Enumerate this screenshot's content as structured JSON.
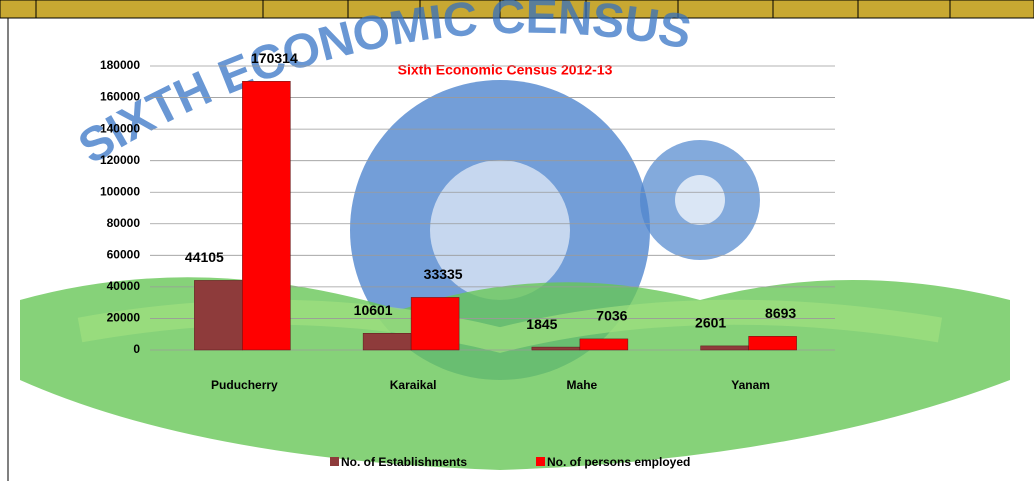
{
  "chart_data": {
    "type": "bar",
    "title": "Sixth Economic Census 2012-13",
    "watermark": "SIXTH ECONOMIC CENSUS",
    "categories": [
      "Puducherry",
      "Karaikal",
      "Mahe",
      "Yanam"
    ],
    "series": [
      {
        "name": "No. of Establishments",
        "color": "#8e3b3b",
        "values": [
          44105,
          10601,
          1845,
          2601
        ]
      },
      {
        "name": "No. of persons employed",
        "color": "#ff0000",
        "values": [
          170314,
          33335,
          7036,
          8693
        ]
      }
    ],
    "ylim": [
      0,
      180000
    ],
    "yticks": [
      0,
      20000,
      40000,
      60000,
      80000,
      100000,
      120000,
      140000,
      160000,
      180000
    ],
    "grid": true,
    "legend": "bottom"
  }
}
